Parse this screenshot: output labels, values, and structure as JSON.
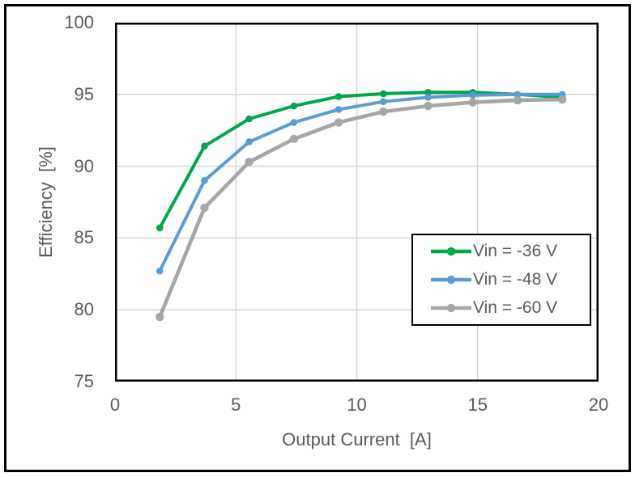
{
  "figure": {
    "background": "#ffffff",
    "frame_color": "#000000"
  },
  "chart_data": {
    "type": "line",
    "title": "",
    "xlabel": "Output Current  [A]",
    "ylabel": "Efficiency  [%]",
    "xlim": [
      0,
      20
    ],
    "ylim": [
      75,
      100
    ],
    "x_ticks": [
      0,
      5,
      10,
      15,
      20
    ],
    "y_ticks": [
      75,
      80,
      85,
      90,
      95,
      100
    ],
    "grid": true,
    "gridline_color": "#d6d6d6",
    "axis_line_color": "#000000",
    "axis_text_color": "#595959",
    "legend_position": "inside-lower-right",
    "x": [
      1.85,
      3.7,
      5.55,
      7.4,
      9.25,
      11.1,
      12.95,
      14.8,
      16.65,
      18.5
    ],
    "series": [
      {
        "name": "Vin = -36 V",
        "color": "#00a64c",
        "values": [
          85.7,
          91.4,
          93.3,
          94.2,
          94.85,
          95.05,
          95.15,
          95.15,
          95.0,
          94.8
        ]
      },
      {
        "name": "Vin = -48 V",
        "color": "#5b9bd5",
        "values": [
          82.7,
          89.0,
          91.7,
          93.05,
          93.95,
          94.5,
          94.8,
          94.95,
          95.0,
          95.0
        ]
      },
      {
        "name": "Vin = -60 V",
        "color": "#a6a6a6",
        "values": [
          79.5,
          87.1,
          90.3,
          91.9,
          93.05,
          93.8,
          94.2,
          94.45,
          94.6,
          94.65
        ]
      }
    ]
  }
}
